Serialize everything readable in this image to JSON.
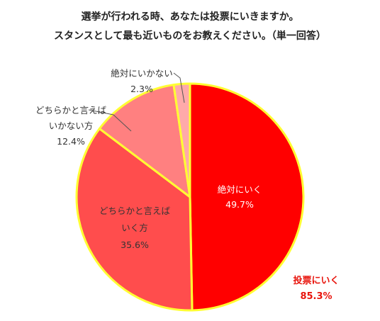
{
  "title_line1": "選挙が行われる時、あなたは投票にいきますか。",
  "title_line2": "スタンスとして最も近いものをお教えください。（単一回答）",
  "chart_data": {
    "type": "pie",
    "title": "選挙が行われる時、あなたは投票にいきますか。スタンスとして最も近いものをお教えください。（単一回答）",
    "slices": [
      {
        "label_lines": [
          "絶対にいく"
        ],
        "value": 49.7,
        "value_text": "49.7%",
        "color": "#ff0000"
      },
      {
        "label_lines": [
          "どちらかと言えば",
          "いく方"
        ],
        "value": 35.6,
        "value_text": "35.6%",
        "color": "#ff4d4d"
      },
      {
        "label_lines": [
          "どちらかと言えば",
          "いかない方"
        ],
        "value": 12.4,
        "value_text": "12.4%",
        "color": "#ff8080"
      },
      {
        "label_lines": [
          "絶対にいかない"
        ],
        "value": 2.3,
        "value_text": "2.3%",
        "color": "#ffaaaa"
      }
    ],
    "border_color": "#ffff33",
    "group_annotation": {
      "label": "投票にいく",
      "value_text": "85.3%",
      "color": "#e8140c"
    }
  }
}
